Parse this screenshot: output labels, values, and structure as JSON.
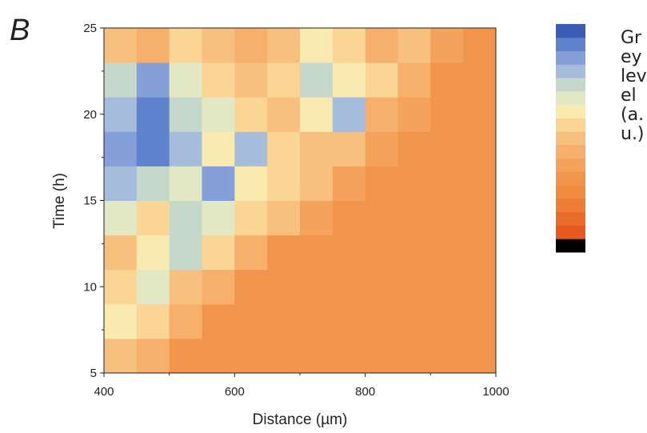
{
  "chart_data": {
    "type": "heatmap",
    "panel_label": "B",
    "xlabel": "Distance (µm)",
    "ylabel": "Time (h)",
    "colorbar_label": "Grey level (a.u.)",
    "xlim": [
      400,
      1000
    ],
    "xticks": [
      400,
      600,
      800,
      1000
    ],
    "xminor": [
      500,
      700,
      900
    ],
    "ylim": [
      5,
      25
    ],
    "yticks": [
      5,
      10,
      15,
      20,
      25
    ],
    "yminor": [
      7.5,
      12.5,
      17.5,
      22.5
    ],
    "xbins": [
      400,
      450,
      500,
      550,
      600,
      650,
      700,
      750,
      800,
      850,
      900,
      950,
      1000
    ],
    "ybins": [
      5,
      7,
      9,
      11,
      13,
      15,
      17,
      19,
      21,
      23,
      25
    ],
    "colors": [
      "#000000",
      "#e65a1f",
      "#ea6c2a",
      "#ee7d35",
      "#f08b40",
      "#f2954c",
      "#f4a25c",
      "#f6b06c",
      "#f8c07f",
      "#fbd594",
      "#f9eab0",
      "#e3e8c4",
      "#c6d7cc",
      "#a5bcdc",
      "#849fd9",
      "#5f82cc",
      "#3c5cb5"
    ],
    "z": [
      [
        8,
        7,
        5,
        5,
        5,
        5,
        5,
        5,
        5,
        5,
        5,
        5
      ],
      [
        10,
        9,
        7,
        5,
        5,
        5,
        5,
        5,
        5,
        5,
        5,
        5
      ],
      [
        9,
        11,
        8,
        7,
        5,
        5,
        5,
        5,
        5,
        5,
        5,
        5
      ],
      [
        8,
        10,
        12,
        9,
        7,
        5,
        5,
        5,
        5,
        5,
        5,
        5
      ],
      [
        11,
        9,
        12,
        11,
        9,
        8,
        6,
        5,
        5,
        5,
        5,
        5
      ],
      [
        13,
        12,
        11,
        14,
        10,
        9,
        8,
        6,
        5,
        5,
        5,
        5
      ],
      [
        14,
        15,
        13,
        10,
        13,
        9,
        8,
        8,
        6,
        5,
        5,
        5
      ],
      [
        13,
        15,
        12,
        11,
        9,
        8,
        10,
        13,
        7,
        6,
        5,
        5
      ],
      [
        12,
        14,
        11,
        9,
        8,
        9,
        12,
        10,
        9,
        7,
        5,
        5
      ],
      [
        8,
        7,
        9,
        8,
        7,
        8,
        10,
        9,
        7,
        8,
        6,
        5
      ]
    ]
  }
}
